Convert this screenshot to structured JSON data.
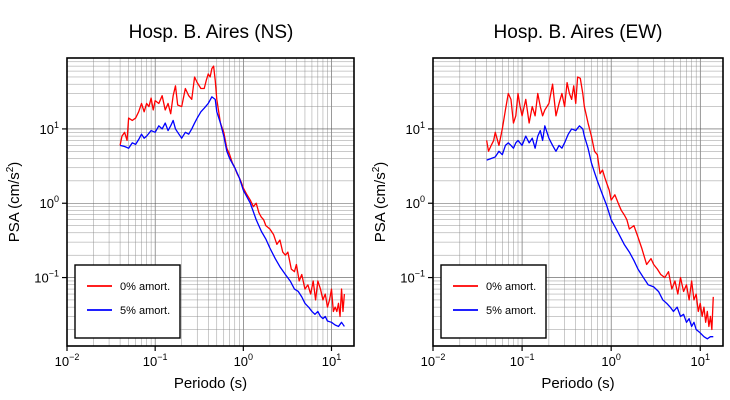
{
  "chart_data": [
    {
      "type": "line",
      "title": "Hosp. B. Aires (NS)",
      "xlabel": "Periodo (s)",
      "ylabel_base": "PSA (cm/s",
      "ylabel_sup": "2",
      "ylabel_tail": ")",
      "xscale": "log",
      "yscale": "log",
      "xlim": [
        0.01,
        18
      ],
      "ylim": [
        0.012,
        90
      ],
      "grid": true,
      "legend_position": "bottom-left",
      "x_ticks": [
        {
          "base": "10",
          "exp": "−2",
          "value": 0.01
        },
        {
          "base": "10",
          "exp": "−1",
          "value": 0.1
        },
        {
          "base": "10",
          "exp": "0",
          "value": 1
        },
        {
          "base": "10",
          "exp": "1",
          "value": 10
        }
      ],
      "y_ticks": [
        {
          "base": "10",
          "exp": "−1",
          "value": 0.1
        },
        {
          "base": "10",
          "exp": "0",
          "value": 1
        },
        {
          "base": "10",
          "exp": "1",
          "value": 10
        }
      ],
      "series": [
        {
          "name": "0% amort.",
          "color": "#ff0000",
          "x": [
            0.04,
            0.042,
            0.045,
            0.048,
            0.05,
            0.055,
            0.06,
            0.065,
            0.07,
            0.075,
            0.08,
            0.085,
            0.09,
            0.095,
            0.1,
            0.11,
            0.12,
            0.13,
            0.14,
            0.15,
            0.16,
            0.17,
            0.18,
            0.2,
            0.22,
            0.24,
            0.26,
            0.28,
            0.3,
            0.33,
            0.36,
            0.38,
            0.4,
            0.42,
            0.44,
            0.46,
            0.48,
            0.5,
            0.55,
            0.6,
            0.65,
            0.7,
            0.75,
            0.8,
            0.85,
            0.9,
            0.95,
            1.0,
            1.1,
            1.2,
            1.3,
            1.4,
            1.5,
            1.6,
            1.7,
            1.8,
            2.0,
            2.2,
            2.4,
            2.6,
            2.8,
            3.0,
            3.2,
            3.5,
            3.8,
            4.0,
            4.3,
            4.6,
            5.0,
            5.4,
            5.8,
            6.2,
            6.6,
            7.0,
            7.5,
            8.0,
            8.5,
            9.0,
            9.5,
            10.0,
            10.5,
            11.0,
            11.5,
            12.0,
            12.5,
            13.0,
            13.5,
            14.0
          ],
          "y": [
            6,
            8,
            9,
            7,
            14,
            13,
            14,
            17,
            22,
            17,
            22,
            20,
            26,
            18,
            24,
            22,
            28,
            18,
            22,
            16,
            28,
            38,
            21,
            20,
            35,
            28,
            25,
            50,
            42,
            35,
            35,
            45,
            55,
            50,
            65,
            70,
            45,
            25,
            12,
            9,
            5.5,
            4.5,
            3.5,
            3.0,
            2.5,
            2.2,
            1.9,
            1.6,
            1.3,
            1.1,
            0.9,
            1.0,
            0.75,
            0.65,
            0.6,
            0.5,
            0.45,
            0.38,
            0.28,
            0.32,
            0.22,
            0.2,
            0.22,
            0.13,
            0.12,
            0.15,
            0.09,
            0.11,
            0.07,
            0.08,
            0.06,
            0.09,
            0.05,
            0.09,
            0.07,
            0.05,
            0.06,
            0.04,
            0.05,
            0.07,
            0.035,
            0.04,
            0.035,
            0.045,
            0.03,
            0.07,
            0.035,
            0.06
          ]
        },
        {
          "name": "5% amort.",
          "color": "#0000ff",
          "x": [
            0.04,
            0.045,
            0.05,
            0.055,
            0.06,
            0.065,
            0.07,
            0.075,
            0.08,
            0.09,
            0.1,
            0.11,
            0.12,
            0.13,
            0.14,
            0.15,
            0.16,
            0.17,
            0.18,
            0.2,
            0.22,
            0.24,
            0.26,
            0.28,
            0.3,
            0.33,
            0.36,
            0.4,
            0.44,
            0.48,
            0.5,
            0.55,
            0.6,
            0.65,
            0.7,
            0.8,
            0.9,
            1.0,
            1.2,
            1.4,
            1.6,
            1.8,
            2.0,
            2.3,
            2.6,
            3.0,
            3.4,
            3.8,
            4.2,
            4.6,
            5.0,
            5.5,
            6.0,
            6.5,
            7.0,
            7.5,
            8.0,
            8.5,
            9.0,
            10.0,
            11.0,
            12.0,
            13.0,
            14.0
          ],
          "y": [
            6,
            5.8,
            5.5,
            6.5,
            6.2,
            7.2,
            8.5,
            7.5,
            8,
            9.5,
            9,
            11,
            10,
            12,
            9.5,
            11,
            13,
            10,
            9,
            7.5,
            9,
            8.5,
            10,
            12,
            14,
            17,
            19,
            22,
            27,
            25,
            17,
            12,
            8,
            5,
            4,
            3.0,
            2.2,
            1.5,
            1.0,
            0.6,
            0.42,
            0.33,
            0.25,
            0.18,
            0.14,
            0.11,
            0.09,
            0.07,
            0.065,
            0.055,
            0.045,
            0.04,
            0.035,
            0.032,
            0.035,
            0.03,
            0.028,
            0.03,
            0.026,
            0.025,
            0.023,
            0.022,
            0.025,
            0.022
          ]
        }
      ]
    },
    {
      "type": "line",
      "title": "Hosp. B. Aires (EW)",
      "xlabel": "Periodo (s)",
      "ylabel_base": "PSA (cm/s",
      "ylabel_sup": "2",
      "ylabel_tail": ")",
      "xscale": "log",
      "yscale": "log",
      "xlim": [
        0.01,
        18
      ],
      "ylim": [
        0.012,
        90
      ],
      "grid": true,
      "legend_position": "bottom-left",
      "x_ticks": [
        {
          "base": "10",
          "exp": "−2",
          "value": 0.01
        },
        {
          "base": "10",
          "exp": "−1",
          "value": 0.1
        },
        {
          "base": "10",
          "exp": "0",
          "value": 1
        },
        {
          "base": "10",
          "exp": "1",
          "value": 10
        }
      ],
      "y_ticks": [
        {
          "base": "10",
          "exp": "−1",
          "value": 0.1
        },
        {
          "base": "10",
          "exp": "0",
          "value": 1
        },
        {
          "base": "10",
          "exp": "1",
          "value": 10
        }
      ],
      "series": [
        {
          "name": "0% amort.",
          "color": "#ff0000",
          "x": [
            0.04,
            0.042,
            0.045,
            0.048,
            0.05,
            0.055,
            0.06,
            0.065,
            0.07,
            0.075,
            0.08,
            0.085,
            0.09,
            0.095,
            0.1,
            0.11,
            0.12,
            0.13,
            0.14,
            0.15,
            0.16,
            0.17,
            0.18,
            0.2,
            0.22,
            0.24,
            0.26,
            0.28,
            0.3,
            0.32,
            0.34,
            0.36,
            0.38,
            0.4,
            0.42,
            0.45,
            0.48,
            0.5,
            0.55,
            0.6,
            0.65,
            0.7,
            0.75,
            0.8,
            0.85,
            0.9,
            0.95,
            1.0,
            1.1,
            1.2,
            1.3,
            1.4,
            1.5,
            1.6,
            1.8,
            2.0,
            2.2,
            2.5,
            2.8,
            3.0,
            3.3,
            3.6,
            4.0,
            4.4,
            4.8,
            5.2,
            5.6,
            6.0,
            6.5,
            7.0,
            7.5,
            8.0,
            8.5,
            9.0,
            9.5,
            10.0,
            10.5,
            11.0,
            11.5,
            12.0,
            12.5,
            13.0,
            13.5,
            14.0
          ],
          "y": [
            7,
            5,
            6,
            7,
            9,
            6,
            10,
            18,
            30,
            25,
            12,
            15,
            30,
            20,
            15,
            25,
            12,
            20,
            15,
            30,
            20,
            15,
            18,
            22,
            40,
            15,
            22,
            30,
            20,
            42,
            30,
            25,
            38,
            22,
            50,
            48,
            30,
            20,
            12,
            8,
            5,
            4.5,
            2.5,
            2.8,
            2.2,
            1.8,
            1.5,
            1.1,
            1.3,
            1.0,
            0.8,
            0.7,
            0.6,
            0.45,
            0.5,
            0.35,
            0.25,
            0.15,
            0.18,
            0.15,
            0.13,
            0.11,
            0.1,
            0.12,
            0.07,
            0.09,
            0.06,
            0.1,
            0.065,
            0.08,
            0.05,
            0.09,
            0.05,
            0.06,
            0.035,
            0.045,
            0.03,
            0.04,
            0.025,
            0.035,
            0.022,
            0.03,
            0.02,
            0.055
          ]
        },
        {
          "name": "5% amort.",
          "color": "#0000ff",
          "x": [
            0.04,
            0.045,
            0.05,
            0.055,
            0.06,
            0.065,
            0.07,
            0.075,
            0.08,
            0.085,
            0.09,
            0.1,
            0.11,
            0.12,
            0.13,
            0.14,
            0.15,
            0.16,
            0.17,
            0.18,
            0.2,
            0.22,
            0.24,
            0.26,
            0.28,
            0.3,
            0.33,
            0.36,
            0.4,
            0.44,
            0.48,
            0.5,
            0.55,
            0.6,
            0.65,
            0.7,
            0.8,
            0.9,
            1.0,
            1.2,
            1.4,
            1.6,
            1.8,
            2.0,
            2.3,
            2.6,
            3.0,
            3.4,
            3.8,
            4.2,
            4.6,
            5.0,
            5.5,
            6.0,
            6.5,
            7.0,
            7.5,
            8.0,
            8.5,
            9.0,
            10.0,
            11.0,
            12.0,
            13.0,
            14.0
          ],
          "y": [
            3.8,
            4.0,
            4.2,
            5.0,
            4.5,
            6.0,
            6.5,
            6.0,
            5.5,
            6.5,
            7.0,
            6.0,
            8.0,
            6.5,
            7.5,
            5.5,
            8.0,
            9.5,
            7.0,
            11,
            7.5,
            6.0,
            5.0,
            6.0,
            5.5,
            6.5,
            8.5,
            10,
            9.5,
            11,
            10,
            8.0,
            5.5,
            3.5,
            2.6,
            2.0,
            1.3,
            0.9,
            0.6,
            0.4,
            0.28,
            0.22,
            0.17,
            0.13,
            0.1,
            0.08,
            0.075,
            0.065,
            0.05,
            0.045,
            0.04,
            0.035,
            0.04,
            0.03,
            0.032,
            0.025,
            0.028,
            0.022,
            0.025,
            0.02,
            0.018,
            0.016,
            0.015,
            0.016,
            0.016
          ]
        }
      ]
    }
  ]
}
